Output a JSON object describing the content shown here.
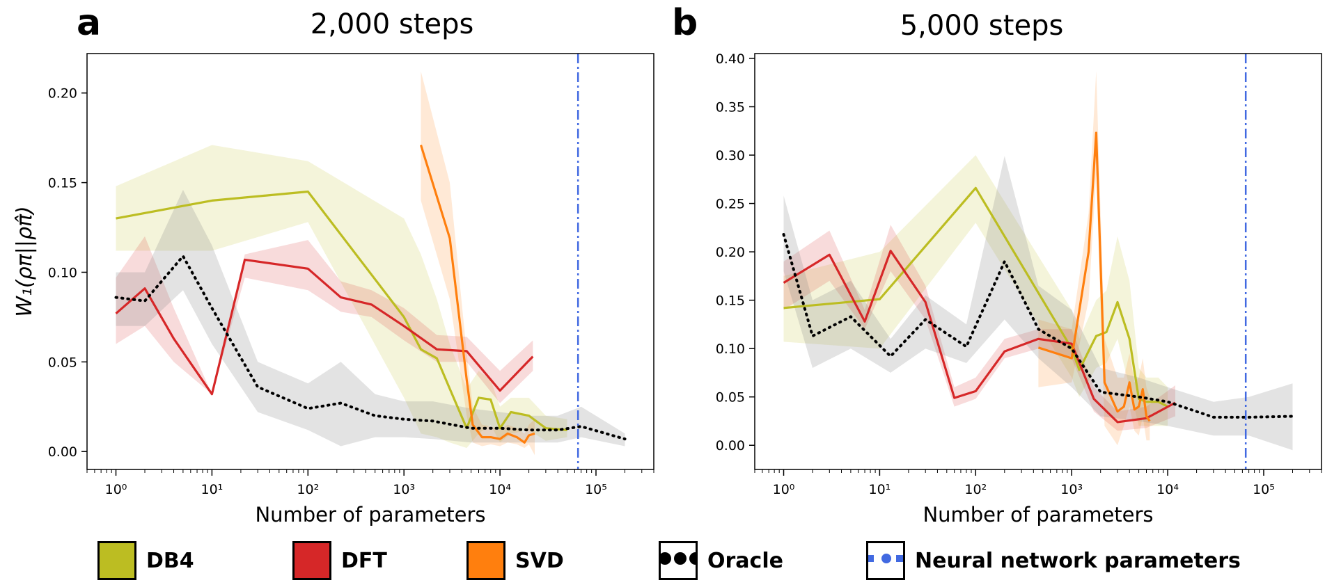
{
  "panels": [
    {
      "letter": "a",
      "title": "2,000 steps"
    },
    {
      "letter": "b",
      "title": "5,000 steps"
    }
  ],
  "legend": [
    {
      "label": "DB4",
      "color": "#bcbd22",
      "icon": "filled-square"
    },
    {
      "label": "DFT",
      "color": "#d62728",
      "icon": "filled-square"
    },
    {
      "label": "SVD",
      "color": "#ff7f0e",
      "icon": "filled-square"
    },
    {
      "label": "Oracle",
      "color": "#000000",
      "icon": "dotted-line"
    },
    {
      "label": "Neural network parameters",
      "color": "#4169e1",
      "icon": "dash-dot-line"
    }
  ],
  "chart_data": [
    {
      "type": "line",
      "title": "2,000 steps",
      "xlabel": "Number of parameters",
      "ylabel": "W₁(ρπ||ρπ̂)",
      "xscale": "log",
      "xlim": [
        0.5,
        400000
      ],
      "ylim": [
        -0.01,
        0.222
      ],
      "yticks": [
        "0.00",
        "0.05",
        "0.10",
        "0.15",
        "0.20"
      ],
      "xticks": [
        "10⁰",
        "10¹",
        "10²",
        "10³",
        "10⁴",
        "10⁵"
      ],
      "vline": 65000,
      "series": [
        {
          "name": "DB4",
          "color": "#bcbd22",
          "x": [
            1,
            10,
            100,
            1000,
            1500,
            2200,
            3000,
            4500,
            6000,
            8000,
            10000,
            13000,
            20000,
            30000,
            50000
          ],
          "y": [
            0.13,
            0.14,
            0.145,
            0.075,
            0.057,
            0.052,
            0.035,
            0.013,
            0.03,
            0.029,
            0.013,
            0.022,
            0.02,
            0.013,
            0.012
          ],
          "lo": [
            0.112,
            0.112,
            0.128,
            0.03,
            0.01,
            0.008,
            0.005,
            0.002,
            0.01,
            0.015,
            0.005,
            0.01,
            0.012,
            0.006,
            0.008
          ],
          "hi": [
            0.148,
            0.171,
            0.162,
            0.13,
            0.11,
            0.085,
            0.06,
            0.035,
            0.045,
            0.04,
            0.025,
            0.03,
            0.03,
            0.02,
            0.018
          ]
        },
        {
          "name": "DFT",
          "color": "#d62728",
          "x": [
            1,
            2,
            4,
            10,
            22,
            100,
            220,
            460,
            1000,
            2200,
            4500,
            10000,
            22000
          ],
          "y": [
            0.077,
            0.091,
            0.063,
            0.032,
            0.107,
            0.102,
            0.086,
            0.082,
            0.07,
            0.057,
            0.056,
            0.034,
            0.053
          ],
          "lo": [
            0.06,
            0.07,
            0.05,
            0.032,
            0.097,
            0.09,
            0.078,
            0.075,
            0.062,
            0.05,
            0.05,
            0.027,
            0.045
          ],
          "hi": [
            0.097,
            0.12,
            0.08,
            0.032,
            0.11,
            0.118,
            0.095,
            0.09,
            0.08,
            0.065,
            0.064,
            0.045,
            0.062
          ]
        },
        {
          "name": "SVD",
          "color": "#ff7f0e",
          "x": [
            1500,
            3000,
            4500,
            5200,
            6500,
            8000,
            10000,
            12000,
            15000,
            18000,
            20000,
            23000
          ],
          "y": [
            0.171,
            0.119,
            0.04,
            0.015,
            0.008,
            0.008,
            0.007,
            0.01,
            0.008,
            0.005,
            0.009,
            0.01
          ],
          "lo": [
            0.14,
            0.085,
            0.02,
            0.005,
            0.003,
            0.004,
            0.003,
            0.005,
            0.004,
            0.002,
            0.004,
            -0.002
          ],
          "hi": [
            0.212,
            0.15,
            0.055,
            0.025,
            0.015,
            0.014,
            0.012,
            0.015,
            0.013,
            0.01,
            0.015,
            0.018
          ]
        },
        {
          "name": "Oracle",
          "color": "#000000",
          "dotted": true,
          "x": [
            1,
            2,
            5,
            10,
            30,
            100,
            220,
            500,
            1000,
            2000,
            5000,
            10000,
            20000,
            40000,
            70000,
            200000
          ],
          "y": [
            0.086,
            0.084,
            0.109,
            0.08,
            0.036,
            0.024,
            0.027,
            0.02,
            0.018,
            0.017,
            0.013,
            0.013,
            0.012,
            0.012,
            0.014,
            0.007
          ],
          "lo": [
            0.07,
            0.07,
            0.09,
            0.06,
            0.022,
            0.012,
            0.003,
            0.008,
            0.008,
            0.007,
            0.005,
            0.005,
            0.005,
            0.005,
            0.008,
            0.003
          ],
          "hi": [
            0.1,
            0.1,
            0.146,
            0.115,
            0.05,
            0.038,
            0.05,
            0.032,
            0.028,
            0.028,
            0.024,
            0.022,
            0.02,
            0.02,
            0.025,
            0.01
          ]
        }
      ]
    },
    {
      "type": "line",
      "title": "5,000 steps",
      "xlabel": "Number of parameters",
      "ylabel": "",
      "xscale": "log",
      "xlim": [
        0.5,
        400000
      ],
      "ylim": [
        -0.025,
        0.405
      ],
      "yticks": [
        "0.00",
        "0.05",
        "0.10",
        "0.15",
        "0.20",
        "0.25",
        "0.30",
        "0.35",
        "0.40"
      ],
      "xticks": [
        "10⁰",
        "10¹",
        "10²",
        "10³",
        "10⁴",
        "10⁵"
      ],
      "vline": 65000,
      "series": [
        {
          "name": "DB4",
          "color": "#bcbd22",
          "x": [
            1,
            10,
            100,
            1000,
            1200,
            1800,
            2300,
            3000,
            4000,
            5000,
            6000,
            8000,
            10000
          ],
          "y": [
            0.142,
            0.151,
            0.266,
            0.1,
            0.078,
            0.113,
            0.117,
            0.148,
            0.11,
            0.048,
            0.045,
            0.045,
            0.04
          ],
          "lo": [
            0.107,
            0.1,
            0.23,
            0.07,
            0.05,
            0.08,
            0.085,
            0.11,
            0.06,
            0.02,
            0.02,
            0.02,
            0.02
          ],
          "hi": [
            0.175,
            0.2,
            0.3,
            0.14,
            0.11,
            0.15,
            0.16,
            0.216,
            0.17,
            0.08,
            0.07,
            0.07,
            0.06
          ]
        },
        {
          "name": "DFT",
          "color": "#d62728",
          "x": [
            1,
            3,
            7,
            13,
            30,
            60,
            100,
            200,
            450,
            1000,
            1700,
            3000,
            6000,
            12000
          ],
          "y": [
            0.168,
            0.197,
            0.128,
            0.201,
            0.148,
            0.049,
            0.056,
            0.097,
            0.11,
            0.105,
            0.048,
            0.024,
            0.028,
            0.044
          ],
          "lo": [
            0.14,
            0.17,
            0.12,
            0.18,
            0.13,
            0.04,
            0.048,
            0.09,
            0.1,
            0.09,
            0.035,
            0.015,
            0.018,
            0.03
          ],
          "hi": [
            0.19,
            0.222,
            0.14,
            0.228,
            0.165,
            0.06,
            0.07,
            0.11,
            0.12,
            0.12,
            0.06,
            0.035,
            0.04,
            0.062
          ]
        },
        {
          "name": "SVD",
          "color": "#ff7f0e",
          "x": [
            450,
            1000,
            1500,
            1800,
            2200,
            3000,
            3500,
            4000,
            4500,
            5000,
            5500,
            6000,
            6500
          ],
          "y": [
            0.101,
            0.09,
            0.2,
            0.323,
            0.065,
            0.035,
            0.04,
            0.065,
            0.037,
            0.04,
            0.058,
            0.03,
            0.025
          ],
          "lo": [
            0.06,
            0.065,
            0.15,
            0.28,
            0.02,
            0.0,
            0.02,
            0.04,
            0.015,
            0.01,
            0.03,
            0.005,
            0.005
          ],
          "hi": [
            0.13,
            0.12,
            0.24,
            0.387,
            0.11,
            0.07,
            0.07,
            0.095,
            0.065,
            0.07,
            0.09,
            0.06,
            0.05
          ]
        },
        {
          "name": "Oracle",
          "color": "#000000",
          "dotted": true,
          "x": [
            1,
            2,
            5,
            13,
            30,
            80,
            200,
            450,
            1000,
            2000,
            5000,
            10000,
            30000,
            70000,
            200000
          ],
          "y": [
            0.218,
            0.113,
            0.133,
            0.092,
            0.13,
            0.102,
            0.19,
            0.12,
            0.1,
            0.055,
            0.05,
            0.045,
            0.029,
            0.029,
            0.03
          ],
          "lo": [
            0.18,
            0.08,
            0.1,
            0.075,
            0.1,
            0.085,
            0.13,
            0.09,
            0.06,
            0.03,
            0.025,
            0.02,
            0.01,
            0.01,
            -0.005
          ],
          "hi": [
            0.258,
            0.15,
            0.17,
            0.11,
            0.155,
            0.125,
            0.299,
            0.165,
            0.14,
            0.08,
            0.07,
            0.06,
            0.045,
            0.05,
            0.064
          ]
        }
      ]
    }
  ]
}
